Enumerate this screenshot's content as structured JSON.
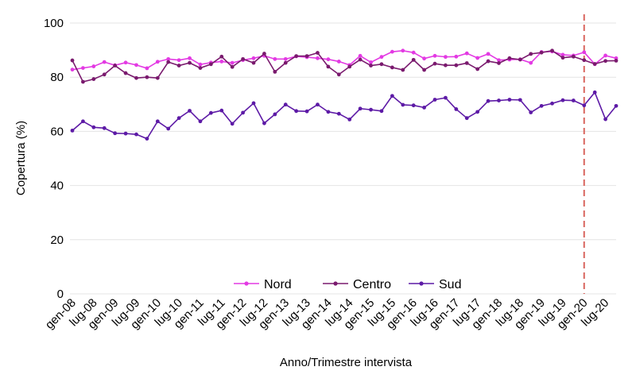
{
  "chart_data": {
    "type": "line",
    "xlabel": "Anno/Trimestre intervista",
    "ylabel": "Copertura (%)",
    "ylim": [
      0,
      100
    ],
    "yticks": [
      0,
      20,
      40,
      60,
      80,
      100
    ],
    "grid": "horizontal",
    "legend_position": "bottom-center",
    "categories": [
      "gen-08",
      "apr-08",
      "lug-08",
      "ott-08",
      "gen-09",
      "apr-09",
      "lug-09",
      "ott-09",
      "gen-10",
      "apr-10",
      "lug-10",
      "ott-10",
      "gen-11",
      "apr-11",
      "lug-11",
      "ott-11",
      "gen-12",
      "apr-12",
      "lug-12",
      "ott-12",
      "gen-13",
      "apr-13",
      "lug-13",
      "ott-13",
      "gen-14",
      "apr-14",
      "lug-14",
      "ott-14",
      "gen-15",
      "apr-15",
      "lug-15",
      "ott-15",
      "gen-16",
      "apr-16",
      "lug-16",
      "ott-16",
      "gen-17",
      "apr-17",
      "lug-17",
      "ott-17",
      "gen-18",
      "apr-18",
      "lug-18",
      "ott-18",
      "gen-19",
      "apr-19",
      "lug-19",
      "ott-19",
      "gen-20",
      "apr-20",
      "lug-20",
      "ott-20"
    ],
    "tick_labels": [
      "gen-08",
      "lug-08",
      "gen-09",
      "lug-09",
      "gen-10",
      "lug-10",
      "gen-11",
      "lug-11",
      "gen-12",
      "lug-12",
      "gen-13",
      "lug-13",
      "gen-14",
      "lug-14",
      "gen-15",
      "lug-15",
      "gen-16",
      "lug-16",
      "gen-17",
      "lug-17",
      "gen-18",
      "lug-18",
      "gen-19",
      "lug-19",
      "gen-20",
      "lug-20"
    ],
    "reference_line": {
      "at": "gen-20",
      "color": "#d9655e",
      "style": "dashed"
    },
    "series": [
      {
        "name": "Nord",
        "color": "#e33ae3",
        "values": [
          82.8,
          83.4,
          84.0,
          85.6,
          84.4,
          85.4,
          84.5,
          83.3,
          85.7,
          86.7,
          86.3,
          87.0,
          84.7,
          85.4,
          85.8,
          85.3,
          86.3,
          87.0,
          87.9,
          86.7,
          86.7,
          87.7,
          87.4,
          87.0,
          86.6,
          85.8,
          84.5,
          87.9,
          85.5,
          87.5,
          89.4,
          89.8,
          89.1,
          86.9,
          87.9,
          87.5,
          87.6,
          88.8,
          87.1,
          88.6,
          86.3,
          86.5,
          86.6,
          85.3,
          89.3,
          89.5,
          88.3,
          88.0,
          89.2,
          84.8,
          88.0,
          87.0
        ]
      },
      {
        "name": "Centro",
        "color": "#7a1a6e",
        "values": [
          86.2,
          78.3,
          79.3,
          81.0,
          84.3,
          81.5,
          79.7,
          80.0,
          79.7,
          85.6,
          84.3,
          85.3,
          83.4,
          84.8,
          87.6,
          83.8,
          86.7,
          85.3,
          88.7,
          82.0,
          85.3,
          87.8,
          87.8,
          89.0,
          83.9,
          81.0,
          83.9,
          86.5,
          84.3,
          84.8,
          83.6,
          82.7,
          86.4,
          82.7,
          85.0,
          84.4,
          84.4,
          85.2,
          83.0,
          85.9,
          85.2,
          87.0,
          86.5,
          88.6,
          89.1,
          89.8,
          87.2,
          87.6,
          86.3,
          84.9,
          86.0,
          86.1
        ]
      },
      {
        "name": "Sud",
        "color": "#5d1aa6",
        "values": [
          60.3,
          63.7,
          61.5,
          61.2,
          59.3,
          59.2,
          58.9,
          57.3,
          63.7,
          61.0,
          64.9,
          67.6,
          63.7,
          66.8,
          67.7,
          62.8,
          66.9,
          70.4,
          63.0,
          66.3,
          69.9,
          67.5,
          67.4,
          69.9,
          67.2,
          66.5,
          64.4,
          68.4,
          68.0,
          67.5,
          73.1,
          69.8,
          69.6,
          68.8,
          71.7,
          72.4,
          68.2,
          64.9,
          67.2,
          71.2,
          71.4,
          71.7,
          71.6,
          67.0,
          69.4,
          70.3,
          71.5,
          71.4,
          69.6,
          74.4,
          64.5,
          69.4
        ]
      }
    ]
  }
}
